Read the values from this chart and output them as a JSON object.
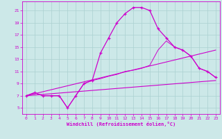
{
  "xlabel": "Windchill (Refroidissement éolien,°C)",
  "xlim": [
    -0.5,
    23.5
  ],
  "ylim": [
    4.0,
    22.5
  ],
  "xticks": [
    0,
    1,
    2,
    3,
    4,
    5,
    6,
    7,
    8,
    9,
    10,
    11,
    12,
    13,
    14,
    15,
    16,
    17,
    18,
    19,
    20,
    21,
    22,
    23
  ],
  "yticks": [
    5,
    7,
    9,
    11,
    13,
    15,
    17,
    19,
    21
  ],
  "bg_color": "#cce8e8",
  "grid_color": "#aad0d0",
  "line_color": "#cc00cc",
  "line1_x": [
    0,
    1,
    2,
    3,
    4,
    5,
    6,
    7,
    8,
    9,
    10,
    11,
    12,
    13,
    14,
    15,
    16,
    17,
    18,
    19,
    20,
    21,
    22,
    23
  ],
  "line1_y": [
    7.0,
    7.5,
    7.0,
    7.0,
    7.0,
    5.0,
    7.0,
    9.0,
    9.5,
    14.0,
    16.5,
    19.0,
    20.5,
    21.5,
    21.5,
    21.0,
    18.0,
    16.5,
    15.0,
    14.5,
    13.5,
    11.5,
    11.0,
    10.0
  ],
  "line2_x": [
    0,
    23
  ],
  "line2_y": [
    7.0,
    14.5
  ],
  "line3_x": [
    0,
    23
  ],
  "line3_y": [
    7.0,
    9.5
  ],
  "line4_x": [
    0,
    1,
    2,
    3,
    4,
    5,
    6,
    7,
    8,
    9,
    10,
    11,
    12,
    13,
    14,
    15,
    16,
    17,
    18,
    19,
    20,
    21,
    22,
    23
  ],
  "line4_y": [
    7.0,
    7.5,
    7.0,
    7.0,
    7.0,
    5.0,
    7.0,
    9.0,
    9.5,
    9.8,
    10.2,
    10.5,
    11.0,
    11.2,
    11.5,
    12.0,
    14.5,
    16.0,
    15.0,
    14.5,
    13.5,
    11.5,
    11.0,
    10.0
  ]
}
